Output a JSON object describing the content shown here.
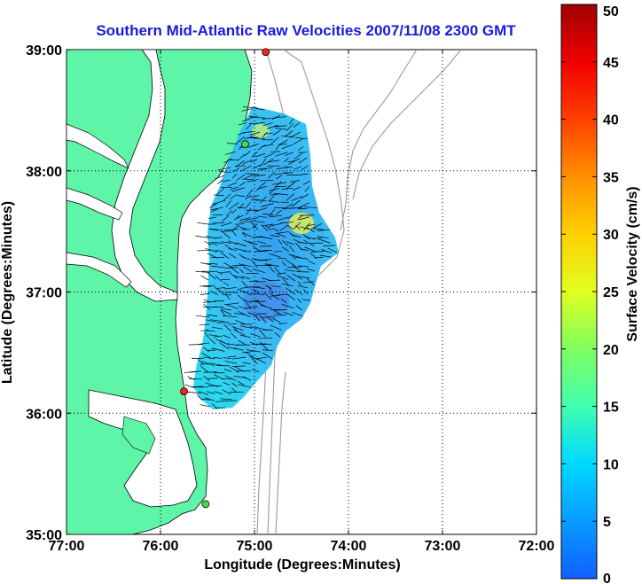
{
  "chart_data": {
    "type": "heatmap",
    "title": "Southern Mid-Atlantic Raw Velocities 2007/11/08 2300 GMT",
    "xlabel": "Longitude (Degrees:Minutes)",
    "ylabel": "Latitude (Degrees:Minutes)",
    "x_ticks": [
      "77:00",
      "76:00",
      "75:00",
      "74:00",
      "73:00",
      "72:00"
    ],
    "y_ticks": [
      "39:00",
      "38:00",
      "37:00",
      "36:00",
      "35:00"
    ],
    "xlim": [
      -77,
      -72
    ],
    "ylim": [
      35,
      39
    ],
    "grid": true,
    "colorbar": {
      "label": "Surface Velocity (cm/s)",
      "ticks": [
        "50",
        "45",
        "40",
        "35",
        "30",
        "25",
        "20",
        "15",
        "10",
        "5",
        "0"
      ],
      "range": [
        0,
        50
      ]
    },
    "stations": [
      {
        "lon": -74.88,
        "lat": 38.98,
        "color": "#ff2020"
      },
      {
        "lon": -75.1,
        "lat": 38.22,
        "color": "#40e040"
      },
      {
        "lon": -75.75,
        "lat": 36.18,
        "color": "#ff2020"
      },
      {
        "lon": -75.52,
        "lat": 35.25,
        "color": "#40e040"
      }
    ]
  }
}
